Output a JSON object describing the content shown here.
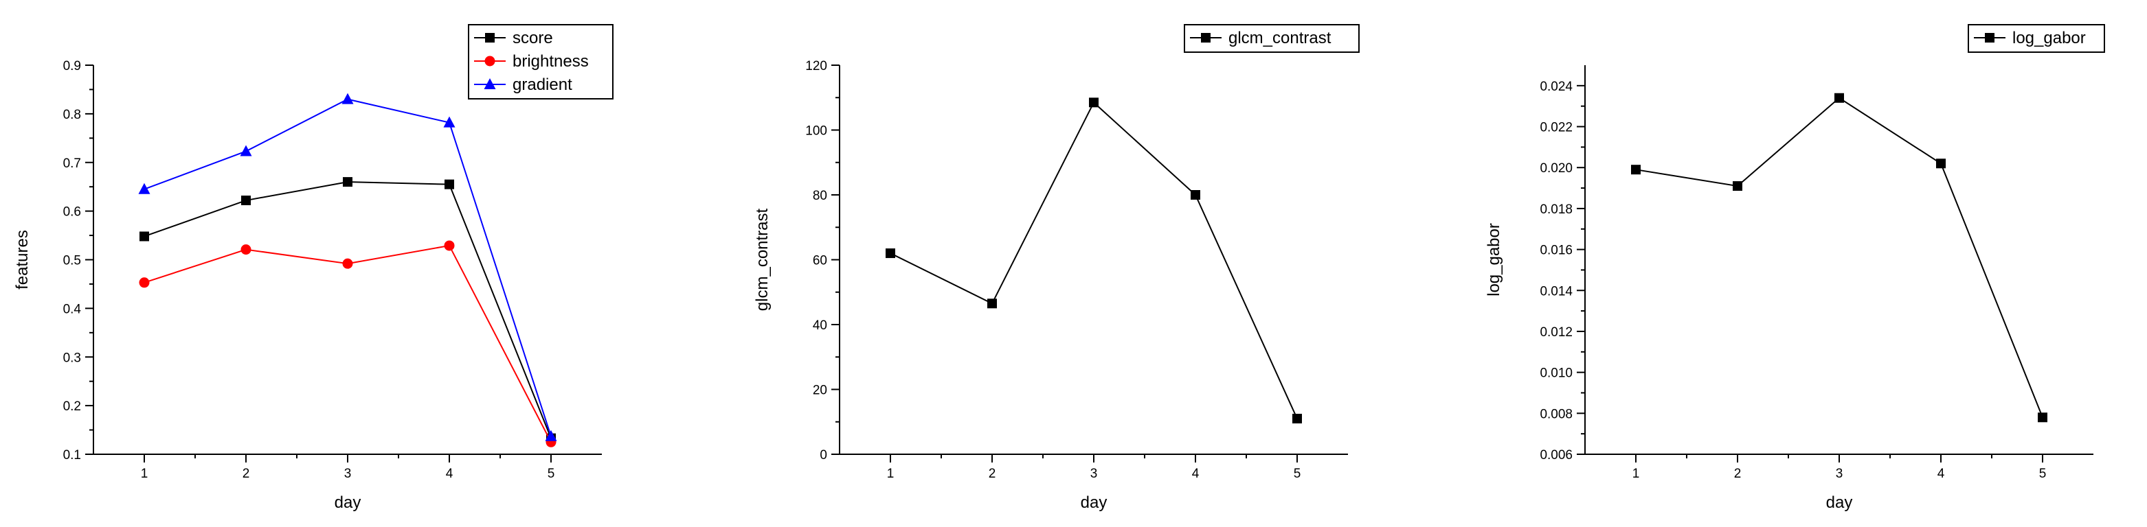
{
  "chart_data": [
    {
      "type": "line",
      "xlabel": "day",
      "ylabel": "features",
      "ylim": [
        0.1,
        0.9
      ],
      "xlim": [
        0.5,
        5.5
      ],
      "x": [
        1,
        2,
        3,
        4,
        5
      ],
      "yticks": [
        "0.1",
        "0.2",
        "0.3",
        "0.4",
        "0.5",
        "0.6",
        "0.7",
        "0.8",
        "0.9"
      ],
      "xticks": [
        "1",
        "2",
        "3",
        "4",
        "5"
      ],
      "legend_position": "top-right",
      "series": [
        {
          "name": "score",
          "values": [
            0.548,
            0.622,
            0.66,
            0.655,
            0.133
          ],
          "color": "#000000",
          "marker": "square"
        },
        {
          "name": "brightness",
          "values": [
            0.453,
            0.521,
            0.492,
            0.529,
            0.125
          ],
          "color": "#ff0000",
          "marker": "circle"
        },
        {
          "name": "gradient",
          "values": [
            0.645,
            0.723,
            0.83,
            0.782,
            0.137
          ],
          "color": "#0000ff",
          "marker": "triangle"
        }
      ]
    },
    {
      "type": "line",
      "xlabel": "day",
      "ylabel": "glcm_contrast",
      "ylim": [
        0,
        120
      ],
      "xlim": [
        0.5,
        5.5
      ],
      "x": [
        1,
        2,
        3,
        4,
        5
      ],
      "yticks": [
        "0",
        "20",
        "40",
        "60",
        "80",
        "100",
        "120"
      ],
      "xticks": [
        "1",
        "2",
        "3",
        "4",
        "5"
      ],
      "legend_position": "top-right",
      "series": [
        {
          "name": "glcm_contrast",
          "values": [
            62,
            46.5,
            108.5,
            80,
            11
          ],
          "color": "#000000",
          "marker": "square"
        }
      ]
    },
    {
      "type": "line",
      "xlabel": "day",
      "ylabel": "log_gabor",
      "ylim": [
        0.006,
        0.025
      ],
      "xlim": [
        0.5,
        5.5
      ],
      "x": [
        1,
        2,
        3,
        4,
        5
      ],
      "yticks": [
        "0.006",
        "0.008",
        "0.010",
        "0.012",
        "0.014",
        "0.016",
        "0.018",
        "0.020",
        "0.022",
        "0.024"
      ],
      "xticks": [
        "1",
        "2",
        "3",
        "4",
        "5"
      ],
      "legend_position": "top-right",
      "series": [
        {
          "name": "log_gabor",
          "values": [
            0.0199,
            0.0191,
            0.0234,
            0.0202,
            0.0078
          ],
          "color": "#000000",
          "marker": "square"
        }
      ]
    }
  ]
}
